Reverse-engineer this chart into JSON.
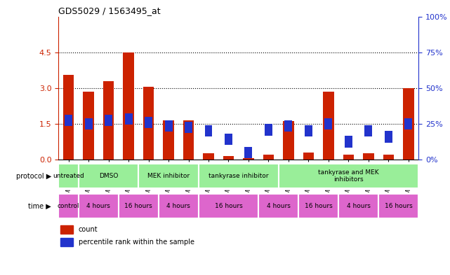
{
  "title": "GDS5029 / 1563495_at",
  "samples": [
    "GSM1340521",
    "GSM1340522",
    "GSM1340523",
    "GSM1340524",
    "GSM1340531",
    "GSM1340532",
    "GSM1340527",
    "GSM1340528",
    "GSM1340535",
    "GSM1340536",
    "GSM1340525",
    "GSM1340526",
    "GSM1340533",
    "GSM1340534",
    "GSM1340529",
    "GSM1340530",
    "GSM1340537",
    "GSM1340538"
  ],
  "red_values": [
    3.55,
    2.85,
    3.3,
    4.5,
    3.05,
    1.65,
    1.65,
    0.25,
    0.15,
    0.05,
    0.2,
    1.6,
    0.3,
    2.85,
    0.2,
    0.25,
    0.2,
    3.0
  ],
  "blue_values": [
    1.65,
    1.5,
    1.65,
    1.7,
    1.55,
    1.4,
    1.35,
    1.2,
    0.85,
    0.3,
    1.25,
    1.4,
    1.2,
    1.5,
    0.75,
    1.2,
    0.95,
    1.5
  ],
  "ylim_left": [
    0,
    6
  ],
  "ylim_right": [
    0,
    100
  ],
  "yticks_left": [
    0,
    1.5,
    3.0,
    4.5
  ],
  "yticks_right": [
    0,
    25,
    50,
    75,
    100
  ],
  "grid_lines": [
    1.5,
    3.0,
    4.5
  ],
  "bar_color": "#cc2200",
  "blue_color": "#2233cc",
  "bg_color": "#ffffff",
  "chart_bg": "#ffffff",
  "proto_color": "#99ee99",
  "time_pink": "#dd66cc",
  "proto_data": [
    [
      0,
      1,
      "untreated"
    ],
    [
      1,
      4,
      "DMSO"
    ],
    [
      4,
      7,
      "MEK inhibitor"
    ],
    [
      7,
      11,
      "tankyrase inhibitor"
    ],
    [
      11,
      18,
      "tankyrase and MEK\ninhibitors"
    ]
  ],
  "time_data": [
    [
      0,
      1,
      "control"
    ],
    [
      1,
      3,
      "4 hours"
    ],
    [
      3,
      5,
      "16 hours"
    ],
    [
      5,
      7,
      "4 hours"
    ],
    [
      7,
      10,
      "16 hours"
    ],
    [
      10,
      12,
      "4 hours"
    ],
    [
      12,
      14,
      "16 hours"
    ],
    [
      14,
      16,
      "4 hours"
    ],
    [
      16,
      18,
      "16 hours"
    ]
  ]
}
